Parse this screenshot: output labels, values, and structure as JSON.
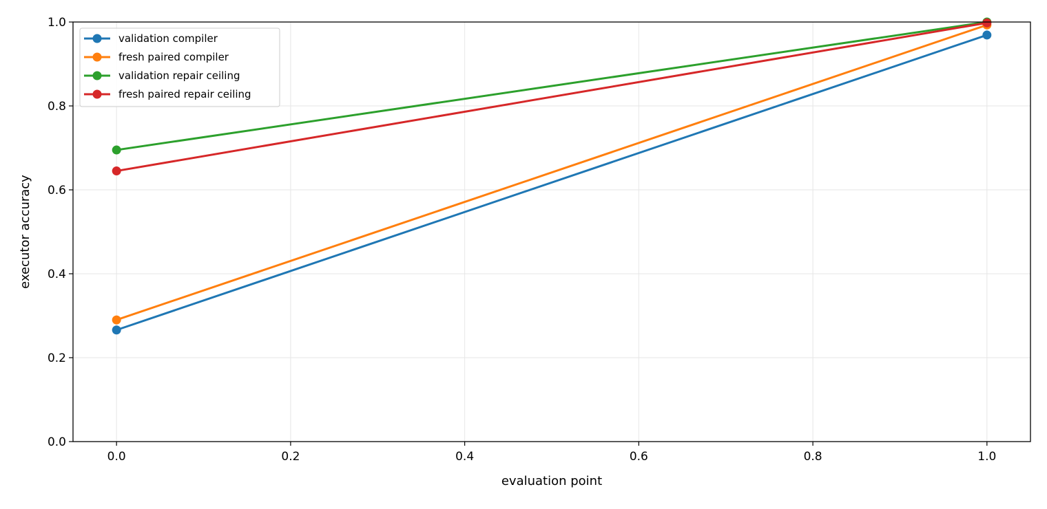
{
  "chart_data": {
    "type": "line",
    "xlabel": "evaluation point",
    "ylabel": "executor accuracy",
    "xlim": [
      -0.05,
      1.05
    ],
    "ylim": [
      0.0,
      1.0
    ],
    "x": [
      0.0,
      1.0
    ],
    "xticks": [
      0.0,
      0.2,
      0.4,
      0.6,
      0.8,
      1.0
    ],
    "xtick_labels": [
      "0.0",
      "0.2",
      "0.4",
      "0.6",
      "0.8",
      "1.0"
    ],
    "yticks": [
      0.0,
      0.2,
      0.4,
      0.6,
      0.8,
      1.0
    ],
    "ytick_labels": [
      "0.0",
      "0.2",
      "0.4",
      "0.6",
      "0.8",
      "1.0"
    ],
    "grid": true,
    "legend_position": "top-left",
    "series": [
      {
        "name": "validation compiler",
        "color": "#1f77b4",
        "values": [
          0.266,
          0.969
        ]
      },
      {
        "name": "fresh paired compiler",
        "color": "#ff7f0e",
        "values": [
          0.29,
          0.993
        ]
      },
      {
        "name": "validation repair ceiling",
        "color": "#2ca02c",
        "values": [
          0.695,
          1.0
        ]
      },
      {
        "name": "fresh paired repair ceiling",
        "color": "#d62728",
        "values": [
          0.645,
          0.998
        ]
      }
    ]
  }
}
